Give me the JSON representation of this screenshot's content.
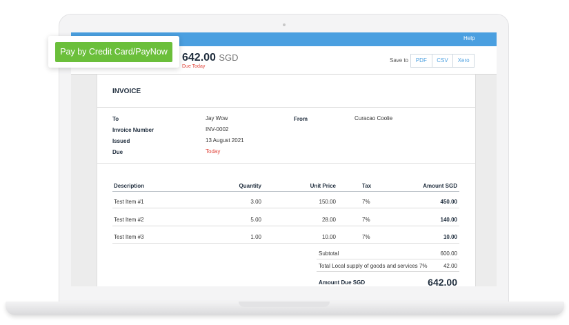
{
  "topbar": {
    "help": "Help"
  },
  "pay_button": "Pay by Credit Card/PayNow",
  "summary": {
    "amount": "642.00",
    "currency": "SGD",
    "status": "Due Today"
  },
  "save": {
    "label": "Save to",
    "options": [
      "PDF",
      "CSV",
      "Xero"
    ]
  },
  "invoice": {
    "title": "INVOICE",
    "details": [
      {
        "label": "To",
        "value": "Jay Wow"
      },
      {
        "label": "Invoice Number",
        "value": "INV-0002"
      },
      {
        "label": "Issued",
        "value": "13 August 2021"
      },
      {
        "label": "Due",
        "value": "Today"
      }
    ],
    "from": {
      "label": "From",
      "value": "Curacao Coolie"
    }
  },
  "table": {
    "headers": [
      "Description",
      "Quantity",
      "Unit Price",
      "Tax",
      "Amount SGD"
    ],
    "rows": [
      [
        "Test Item #1",
        "3.00",
        "150.00",
        "7%",
        "450.00"
      ],
      [
        "Test Item #2",
        "5.00",
        "28.00",
        "7%",
        "140.00"
      ],
      [
        "Test Item #3",
        "1.00",
        "10.00",
        "7%",
        "10.00"
      ]
    ]
  },
  "totals": [
    {
      "label": "Subtotal",
      "value": "600.00"
    },
    {
      "label": "Total Local supply of goods and services 7%",
      "value": "42.00"
    },
    {
      "label": "Amount Due SGD",
      "value": "642.00"
    }
  ]
}
